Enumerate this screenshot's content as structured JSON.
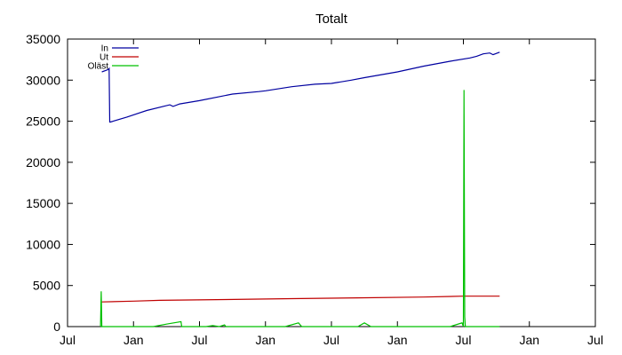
{
  "chart_data": {
    "type": "line",
    "title": "Totalt",
    "xlabel": "",
    "ylabel": "",
    "ylim": [
      0,
      35000
    ],
    "xlim": [
      "Jul",
      "Jul"
    ],
    "x_tick_labels": [
      "Jul",
      "Jan",
      "Jul",
      "Jan",
      "Jul",
      "Jan",
      "Jul",
      "Jan",
      "Jul"
    ],
    "y_tick_labels": [
      "0",
      "5000",
      "10000",
      "15000",
      "20000",
      "25000",
      "30000",
      "35000"
    ],
    "y_ticks": [
      0,
      5000,
      10000,
      15000,
      20000,
      25000,
      30000,
      35000
    ],
    "grid": false,
    "legend_position": "top-left",
    "series": [
      {
        "name": "In",
        "color": "#0000a0",
        "x": [
          0.52,
          0.62,
          0.63,
          0.64,
          0.65,
          0.9,
          1.2,
          1.55,
          1.6,
          1.7,
          2.0,
          2.5,
          2.9,
          3.0,
          3.4,
          3.75,
          4.0,
          4.3,
          4.5,
          5.0,
          5.4,
          5.8,
          6.1,
          6.2,
          6.3,
          6.4,
          6.45,
          6.55
        ],
        "values": [
          31000,
          31300,
          31400,
          24900,
          24900,
          25500,
          26300,
          27000,
          26800,
          27100,
          27500,
          28300,
          28600,
          28700,
          29200,
          29500,
          29600,
          30000,
          30300,
          31000,
          31700,
          32300,
          32700,
          32900,
          33200,
          33300,
          33100,
          33400
        ]
      },
      {
        "name": "Ut",
        "color": "#c00000",
        "x": [
          0.52,
          1.0,
          1.4,
          2.4,
          3.4,
          4.4,
          5.4,
          6.0,
          6.55
        ],
        "values": [
          3000,
          3100,
          3200,
          3300,
          3400,
          3500,
          3600,
          3700,
          3700
        ]
      },
      {
        "name": "Oläst",
        "color": "#00c000",
        "x": [
          0.5,
          0.51,
          0.52,
          0.53,
          1.3,
          1.5,
          1.72,
          1.73,
          1.8,
          2.1,
          2.2,
          2.3,
          2.38,
          2.4,
          2.6,
          2.8,
          3.1,
          3.3,
          3.5,
          3.55,
          3.6,
          3.9,
          4.0,
          4.4,
          4.5,
          4.6,
          4.8,
          5.0,
          5.3,
          5.6,
          5.8,
          5.98,
          6.0,
          6.01,
          6.02,
          6.03,
          6.05,
          6.2,
          6.55
        ],
        "values": [
          0,
          4300,
          0,
          0,
          0,
          300,
          600,
          0,
          0,
          0,
          120,
          0,
          200,
          0,
          0,
          0,
          0,
          0,
          450,
          0,
          0,
          0,
          0,
          0,
          450,
          0,
          0,
          0,
          0,
          0,
          0,
          450,
          0,
          28800,
          1200,
          0,
          0,
          0,
          0
        ]
      }
    ]
  }
}
